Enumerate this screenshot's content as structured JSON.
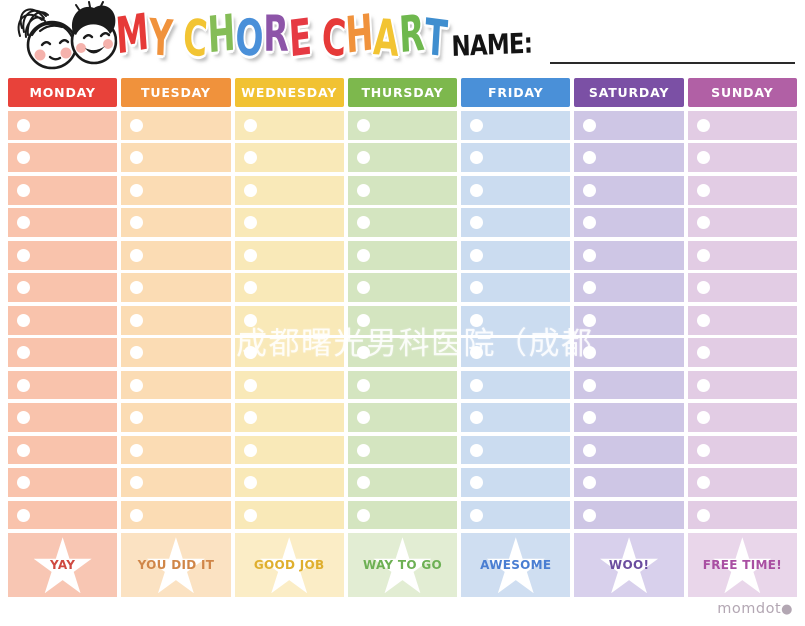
{
  "header": {
    "title_letters": [
      {
        "ch": "M",
        "color": "#e63a38"
      },
      {
        "ch": "Y",
        "color": "#f0923c"
      },
      {
        "ch": " "
      },
      {
        "ch": "C",
        "color": "#f2c433"
      },
      {
        "ch": "H",
        "color": "#85bd57"
      },
      {
        "ch": "O",
        "color": "#4a90d9"
      },
      {
        "ch": "R",
        "color": "#8d55a8"
      },
      {
        "ch": "E",
        "color": "#e63a43"
      },
      {
        "ch": " "
      },
      {
        "ch": "C",
        "color": "#e63a38"
      },
      {
        "ch": "H",
        "color": "#f0923c"
      },
      {
        "ch": "A",
        "color": "#f2c433"
      },
      {
        "ch": "R",
        "color": "#6fb84e"
      },
      {
        "ch": "T",
        "color": "#3f8ecf"
      }
    ],
    "name_label": "NAME:",
    "kids_illustration": "girl-and-boy-faces-line-art"
  },
  "chart": {
    "rows_per_day": 13,
    "days": [
      {
        "label": "MONDAY",
        "reward": "YAY",
        "colors": {
          "header": "#e8423a",
          "row": "#f9c3ac",
          "star_cell": "#f8c6b3",
          "reward_text": "#cf4940"
        }
      },
      {
        "label": "TUESDAY",
        "reward": "YOU DID IT",
        "colors": {
          "header": "#f0923c",
          "row": "#fbdcb4",
          "star_cell": "#fbe2c2",
          "reward_text": "#d08648"
        }
      },
      {
        "label": "WEDNESDAY",
        "reward": "GOOD JOB",
        "colors": {
          "header": "#f1c233",
          "row": "#f9e9b8",
          "star_cell": "#fbedc6",
          "reward_text": "#dfaf2e"
        }
      },
      {
        "label": "THURSDAY",
        "reward": "WAY TO GO",
        "colors": {
          "header": "#7db84d",
          "row": "#d4e5c0",
          "star_cell": "#e2edd3",
          "reward_text": "#6db054"
        }
      },
      {
        "label": "FRIDAY",
        "reward": "AWESOME",
        "colors": {
          "header": "#4a90d8",
          "row": "#cbdcf0",
          "star_cell": "#cfdef1",
          "reward_text": "#4a7ed2"
        }
      },
      {
        "label": "SATURDAY",
        "reward": "WOO!",
        "colors": {
          "header": "#7b50a5",
          "row": "#cec6e5",
          "star_cell": "#d8d0ec",
          "reward_text": "#6b4d9f"
        }
      },
      {
        "label": "SUNDAY",
        "reward": "FREE TIME!",
        "colors": {
          "header": "#b160a5",
          "row": "#e2cce4",
          "star_cell": "#e9d6ea",
          "reward_text": "#a94fa2"
        }
      }
    ]
  },
  "watermark": "成都曙光男科医院（成都",
  "footer": {
    "logo": "momdot",
    "logo_dot": "●"
  }
}
